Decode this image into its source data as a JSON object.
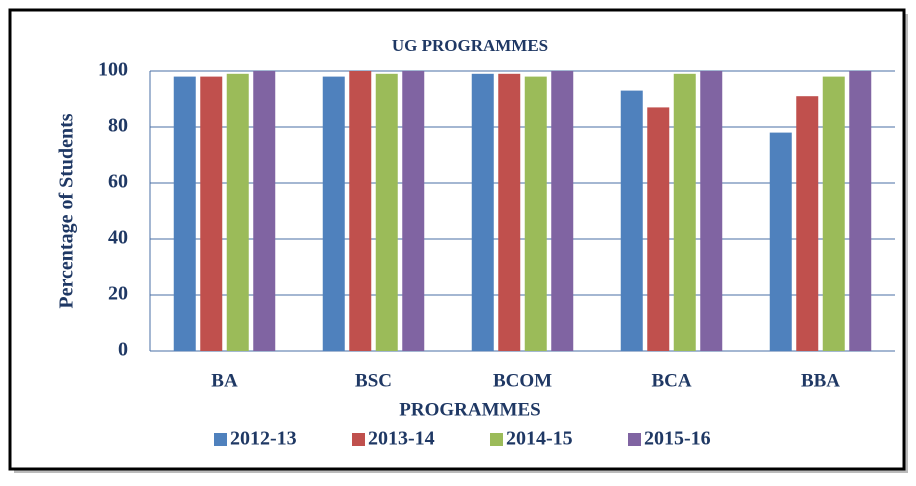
{
  "chart_data": {
    "type": "bar",
    "title": "UG PROGRAMMES",
    "x_label": "PROGRAMMES",
    "y_label": "Percentage of Students",
    "categories": [
      "BA",
      "BSC",
      "BCOM",
      "BCA",
      "BBA"
    ],
    "series": [
      {
        "name": "2012-13",
        "color": "#4f81bd",
        "values": [
          98,
          98,
          99,
          93,
          78
        ]
      },
      {
        "name": "2013-14",
        "color": "#c0504d",
        "values": [
          98,
          100,
          99,
          87,
          91
        ]
      },
      {
        "name": "2014-15",
        "color": "#9bbb59",
        "values": [
          99,
          99,
          98,
          99,
          98
        ]
      },
      {
        "name": "2015-16",
        "color": "#8064a2",
        "values": [
          100,
          100,
          100,
          100,
          100
        ]
      }
    ],
    "ylim": [
      0,
      100
    ],
    "yticks": [
      0,
      20,
      40,
      60,
      80,
      100
    ],
    "grid": true,
    "legend": "bottom"
  }
}
